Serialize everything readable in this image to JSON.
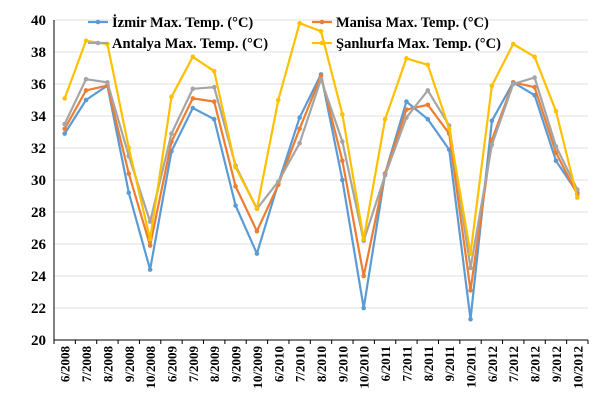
{
  "chart_data": {
    "type": "line",
    "title": "",
    "xlabel": "",
    "ylabel": "",
    "ylim": [
      20,
      40
    ],
    "yticks": [
      20,
      22,
      24,
      26,
      28,
      30,
      32,
      34,
      36,
      38,
      40
    ],
    "grid": true,
    "legend_position": "top",
    "x": [
      "6/2008",
      "7/2008",
      "8/2008",
      "9/2008",
      "10/2008",
      "6/2009",
      "7/2009",
      "8/2009",
      "9/2009",
      "10/2009",
      "6/2010",
      "7/2010",
      "8/2010",
      "9/2010",
      "10/2010",
      "6/2011",
      "7/2011",
      "8/2011",
      "9/2011",
      "10/2011",
      "6/2012",
      "7/2012",
      "8/2012",
      "9/2012",
      "10/2012"
    ],
    "series": [
      {
        "name": "İzmir Max. Temp. (°C)",
        "color": "#5B9BD5",
        "values": [
          32.9,
          35.0,
          35.9,
          29.2,
          24.4,
          31.8,
          34.5,
          33.8,
          28.4,
          25.4,
          29.8,
          33.9,
          36.6,
          30.0,
          22.0,
          30.4,
          34.9,
          33.8,
          31.9,
          21.3,
          33.7,
          36.1,
          35.3,
          31.2,
          29.2
        ]
      },
      {
        "name": "Manisa Max. Temp. (°C)",
        "color": "#ED7D31",
        "values": [
          33.2,
          35.6,
          35.9,
          30.4,
          25.9,
          32.4,
          35.1,
          34.9,
          29.6,
          26.8,
          29.7,
          33.2,
          36.5,
          31.2,
          24.0,
          30.4,
          34.4,
          34.7,
          32.9,
          23.1,
          32.5,
          36.1,
          35.8,
          31.7,
          29.1
        ]
      },
      {
        "name": "Antalya Max. Temp. (°C)",
        "color": "#A5A5A5",
        "values": [
          33.5,
          36.3,
          36.1,
          31.5,
          27.4,
          32.9,
          35.7,
          35.8,
          30.9,
          28.2,
          29.9,
          32.3,
          36.3,
          32.4,
          26.2,
          30.3,
          33.9,
          35.6,
          33.4,
          24.5,
          32.2,
          36.0,
          36.4,
          32.1,
          29.4
        ]
      },
      {
        "name": "Şanlıurfa Max. Temp. (°C)",
        "color": "#FFC000",
        "values": [
          35.1,
          38.7,
          38.5,
          32.0,
          26.3,
          35.2,
          37.7,
          36.8,
          30.8,
          28.2,
          35.0,
          39.8,
          39.3,
          34.1,
          26.3,
          33.8,
          37.6,
          37.2,
          33.2,
          25.4,
          35.9,
          38.5,
          37.7,
          34.3,
          28.9
        ]
      }
    ]
  }
}
